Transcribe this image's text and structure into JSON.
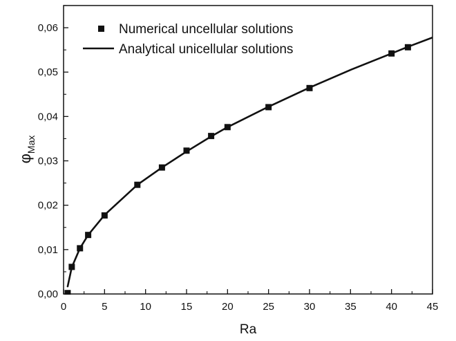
{
  "chart_data": {
    "type": "scatter",
    "xlabel": "Ra",
    "ylabel": {
      "symbol": "φ",
      "subscript": "Max"
    },
    "xlim": [
      0,
      45
    ],
    "ylim": [
      0.0,
      0.065
    ],
    "xticks": [
      "0",
      "5",
      "10",
      "15",
      "20",
      "25",
      "30",
      "35",
      "40",
      "45"
    ],
    "yticks": [
      "0,00",
      "0,01",
      "0,02",
      "0,03",
      "0,04",
      "0,05",
      "0,06"
    ],
    "grid": false,
    "legend_position": "top-left",
    "series": [
      {
        "name": "Numerical uncellular solutions",
        "kind": "markers",
        "marker": "square",
        "x": [
          0.5,
          1,
          2,
          3,
          5,
          9,
          12,
          15,
          18,
          20,
          25,
          30,
          40,
          42
        ],
        "y": [
          0.0002,
          0.0061,
          0.0103,
          0.0133,
          0.0177,
          0.0246,
          0.0285,
          0.0323,
          0.0356,
          0.0376,
          0.0421,
          0.0464,
          0.0542,
          0.0556
        ]
      },
      {
        "name": "Analytical unicellular solutions",
        "kind": "line",
        "x": [
          0.5,
          1,
          2,
          3,
          5,
          9,
          12,
          15,
          18,
          20,
          25,
          30,
          35,
          40,
          42,
          45
        ],
        "y": [
          0.0017,
          0.006,
          0.0103,
          0.0133,
          0.0178,
          0.0246,
          0.0285,
          0.0321,
          0.0355,
          0.0376,
          0.0422,
          0.0465,
          0.0505,
          0.0542,
          0.0557,
          0.0578
        ]
      }
    ],
    "colors": {
      "line": "#111111",
      "marker": "#111111",
      "axis": "#111111"
    }
  }
}
